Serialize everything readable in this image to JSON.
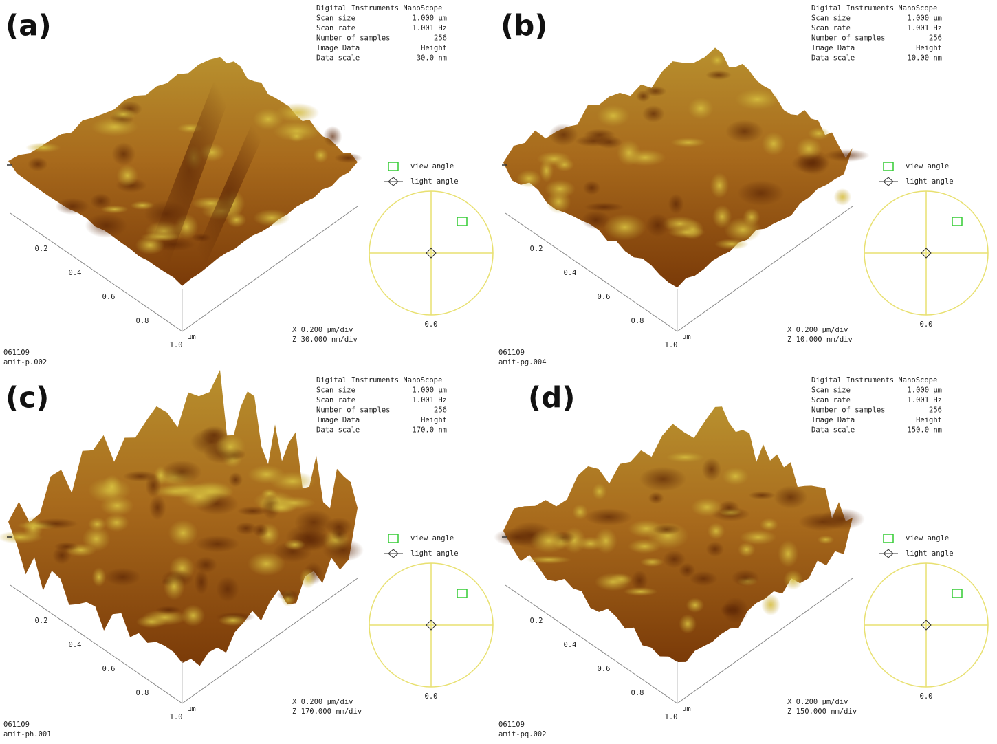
{
  "panels": [
    {
      "label": "(a)",
      "info": [
        [
          "Digital Instruments NanoScope",
          ""
        ],
        [
          "Scan size",
          "1.000 µm"
        ],
        [
          "Scan rate",
          "1.001 Hz"
        ],
        [
          "Number of samples",
          "256"
        ],
        [
          "Image Data",
          "Height"
        ],
        [
          "Data scale",
          "30.0 nm"
        ]
      ],
      "ticks": [
        "0.2",
        "0.4",
        "0.6",
        "0.8",
        "1.0"
      ],
      "unit": "µm",
      "view": "view angle",
      "light": "light angle",
      "circle": "0.0",
      "scale": [
        "X 0.200 µm/div",
        "Z 30.000 nm/div"
      ],
      "footer": [
        "061109",
        "amit-p.002"
      ]
    },
    {
      "label": "(b)",
      "info": [
        [
          "Digital Instruments NanoScope",
          ""
        ],
        [
          "Scan size",
          "1.000 µm"
        ],
        [
          "Scan rate",
          "1.001 Hz"
        ],
        [
          "Number of samples",
          "256"
        ],
        [
          "Image Data",
          "Height"
        ],
        [
          "Data scale",
          "10.00 nm"
        ]
      ],
      "ticks": [
        "0.2",
        "0.4",
        "0.6",
        "0.8",
        "1.0"
      ],
      "unit": "µm",
      "view": "view angle",
      "light": "light angle",
      "circle": "0.0",
      "scale": [
        "X 0.200 µm/div",
        "Z 10.000 nm/div"
      ],
      "footer": [
        "061109",
        "amit-pg.004"
      ]
    },
    {
      "label": "(c)",
      "info": [
        [
          "Digital Instruments NanoScope",
          ""
        ],
        [
          "Scan size",
          "1.000 µm"
        ],
        [
          "Scan rate",
          "1.001 Hz"
        ],
        [
          "Number of samples",
          "256"
        ],
        [
          "Image Data",
          "Height"
        ],
        [
          "Data scale",
          "170.0 nm"
        ]
      ],
      "ticks": [
        "0.2",
        "0.4",
        "0.6",
        "0.8",
        "1.0"
      ],
      "unit": "µm",
      "view": "view angle",
      "light": "light angle",
      "circle": "0.0",
      "scale": [
        "X 0.200 µm/div",
        "Z 170.000 nm/div"
      ],
      "footer": [
        "061109",
        "amit-ph.001"
      ]
    },
    {
      "label": "(d)",
      "info": [
        [
          "Digital Instruments NanoScope",
          ""
        ],
        [
          "Scan size",
          "1.000 µm"
        ],
        [
          "Scan rate",
          "1.001 Hz"
        ],
        [
          "Number of samples",
          "256"
        ],
        [
          "Image Data",
          "Height"
        ],
        [
          "Data scale",
          "150.0 nm"
        ]
      ],
      "ticks": [
        "0.2",
        "0.4",
        "0.6",
        "0.8",
        "1.0"
      ],
      "unit": "µm",
      "view": "view angle",
      "light": "light angle",
      "circle": "0.0",
      "scale": [
        "X 0.200 µm/div",
        "Z 150.000 nm/div"
      ],
      "footer": [
        "061109",
        "amit-pq.002"
      ]
    }
  ]
}
